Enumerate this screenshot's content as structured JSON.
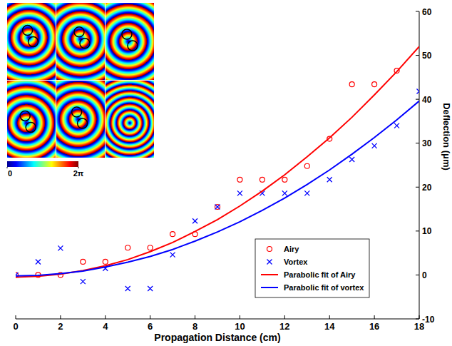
{
  "chart_data": {
    "type": "scatter",
    "x_label": "Propagation Distance (cm)",
    "y_label": "Deflection (μm)",
    "xlim": [
      0,
      18
    ],
    "xticks": [
      0,
      2,
      4,
      6,
      8,
      10,
      12,
      14,
      16,
      18
    ],
    "ylim": [
      -10,
      60
    ],
    "yticks": [
      -10,
      0,
      10,
      20,
      30,
      40,
      50,
      60
    ],
    "grid": false,
    "legend": "lower right",
    "colorbar_range": [
      0,
      6.283
    ],
    "colorbar_ticks": [
      {
        "value": 0,
        "label": "0"
      },
      {
        "value": 6.283,
        "label": "2π"
      }
    ],
    "series": [
      {
        "name": "Airy",
        "type": "scatter",
        "marker": "circle",
        "line_style": "none",
        "color": "#ff0000",
        "x": [
          0,
          1,
          2,
          3,
          4,
          5,
          6,
          7,
          8,
          9,
          10,
          11,
          12,
          13,
          14,
          15,
          16,
          17
        ],
        "values": [
          0,
          0,
          0,
          3,
          3,
          6.2,
          6.2,
          9.3,
          9.3,
          15.5,
          21.7,
          21.7,
          21.7,
          24.8,
          31,
          43.4,
          43.4,
          46.5
        ]
      },
      {
        "name": "Vortex",
        "type": "scatter",
        "marker": "x",
        "line_style": "none",
        "color": "#0000ff",
        "x": [
          0,
          1,
          2,
          3,
          4,
          5,
          6,
          7,
          8,
          9,
          10,
          11,
          12,
          13,
          14,
          15,
          16,
          17,
          18
        ],
        "values": [
          0,
          3,
          6.1,
          -1.5,
          1.5,
          -3.1,
          -3.1,
          4.6,
          12.3,
          15.5,
          18.6,
          18.6,
          18.6,
          18.6,
          21.7,
          26.3,
          29.4,
          34,
          41.8
        ]
      },
      {
        "name": "Parabolic fit of Airy",
        "type": "line",
        "marker": "none",
        "line_style": "solid",
        "color": "#ff0000",
        "x": [
          0,
          1,
          2,
          3,
          4,
          5,
          6,
          7,
          8,
          9,
          10,
          11,
          12,
          13,
          14,
          15,
          16,
          17,
          18
        ],
        "values": [
          -0.5,
          -0.3,
          0.2,
          1.0,
          2.1,
          3.5,
          5.3,
          7.4,
          9.9,
          12.6,
          15.7,
          19.1,
          22.8,
          26.9,
          31.2,
          35.9,
          41,
          46.3,
          52
        ]
      },
      {
        "name": "Parabolic fit of vortex",
        "type": "line",
        "marker": "none",
        "line_style": "solid",
        "color": "#0000ff",
        "x": [
          0,
          1,
          2,
          3,
          4,
          5,
          6,
          7,
          8,
          9,
          10,
          11,
          12,
          13,
          14,
          15,
          16,
          17,
          18
        ],
        "values": [
          -0.2,
          -0.1,
          0.3,
          0.9,
          1.8,
          2.9,
          4.2,
          5.8,
          7.7,
          9.8,
          12.1,
          14.7,
          17.5,
          20.6,
          23.9,
          27.5,
          31.3,
          35.3,
          39.6
        ]
      }
    ]
  }
}
